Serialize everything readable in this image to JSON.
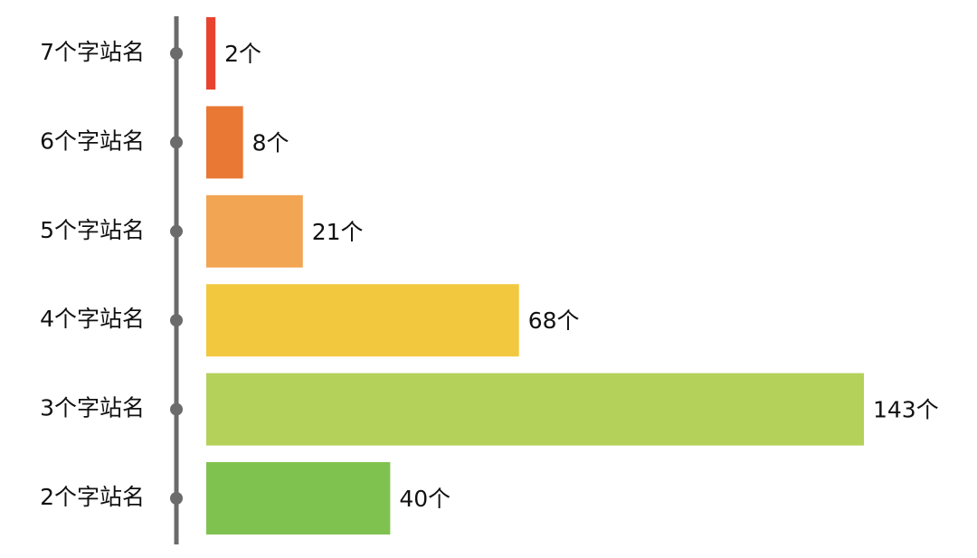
{
  "chart_data": {
    "type": "hbar",
    "categories": [
      "7个字站名",
      "6个字站名",
      "5个字站名",
      "4个字站名",
      "3个字站名",
      "2个字站名"
    ],
    "values": [
      2,
      8,
      21,
      68,
      143,
      40
    ],
    "value_labels": [
      "2个",
      "8个",
      "21个",
      "68个",
      "143个",
      "40个"
    ],
    "colors": [
      "#e8432f",
      "#e87834",
      "#f2a552",
      "#f2c83f",
      "#b4d15a",
      "#80c24f"
    ]
  }
}
